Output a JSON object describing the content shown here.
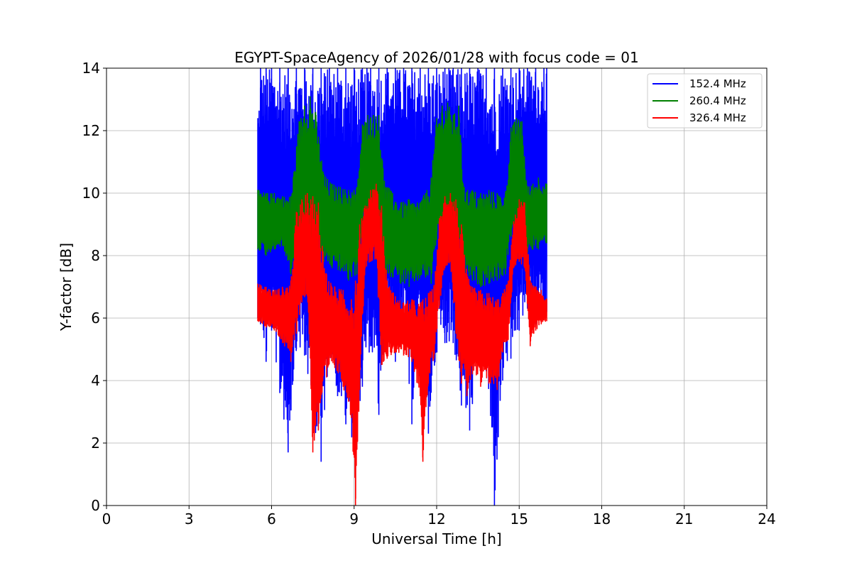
{
  "chart_data": {
    "type": "line",
    "title": "EGYPT-SpaceAgency of 2026/01/28 with focus code = 01",
    "xlabel": "Universal Time [h]",
    "ylabel": "Y-factor [dB]",
    "xlim": [
      0,
      24
    ],
    "ylim": [
      0,
      14
    ],
    "xticks": [
      0,
      3,
      6,
      9,
      12,
      15,
      18,
      21,
      24
    ],
    "xtick_labels": [
      "0",
      "3",
      "6",
      "9",
      "12",
      "15",
      "18",
      "21",
      "24"
    ],
    "yticks": [
      0,
      2,
      4,
      6,
      8,
      10,
      12,
      14
    ],
    "ytick_labels": [
      "0",
      "2",
      "4",
      "6",
      "8",
      "10",
      "12",
      "14"
    ],
    "grid": true,
    "legend_position": "top-right",
    "series": [
      {
        "name": "152.4 MHz",
        "color": "#0000ff",
        "x": [
          5.5,
          5.6,
          5.8,
          6.0,
          6.3,
          6.6,
          6.9,
          7.2,
          7.5,
          7.8,
          8.1,
          8.4,
          8.7,
          9.0,
          9.3,
          9.6,
          9.9,
          10.2,
          10.5,
          10.8,
          11.1,
          11.4,
          11.7,
          12.0,
          12.3,
          12.6,
          12.9,
          13.2,
          13.5,
          13.8,
          14.1,
          14.4,
          14.7,
          15.0,
          15.3,
          15.6,
          15.9,
          16.0
        ],
        "y_high": [
          12.4,
          14.0,
          14.0,
          14.0,
          14.0,
          14.0,
          14.0,
          14.0,
          14.0,
          14.0,
          14.0,
          14.0,
          14.0,
          14.0,
          14.0,
          14.0,
          14.0,
          14.0,
          14.0,
          14.0,
          14.0,
          14.0,
          14.0,
          14.0,
          14.0,
          14.0,
          14.0,
          14.0,
          14.0,
          14.0,
          14.0,
          14.0,
          14.0,
          14.0,
          14.0,
          14.0,
          14.0,
          14.0
        ],
        "y_low": [
          6.0,
          5.8,
          4.6,
          5.6,
          3.6,
          1.7,
          5.0,
          4.8,
          2.7,
          1.4,
          4.9,
          3.5,
          2.6,
          2.0,
          3.8,
          5.1,
          2.9,
          6.0,
          4.6,
          6.1,
          2.6,
          5.1,
          2.3,
          4.9,
          5.2,
          5.2,
          3.2,
          2.4,
          4.7,
          4.3,
          0.0,
          4.0,
          4.7,
          5.6,
          6.3,
          5.8,
          6.0,
          6.2
        ]
      },
      {
        "name": "260.4 MHz",
        "color": "#008000",
        "x": [
          5.5,
          5.8,
          6.1,
          6.4,
          6.7,
          7.0,
          7.2,
          7.4,
          7.6,
          7.9,
          8.2,
          8.5,
          8.8,
          9.1,
          9.3,
          9.5,
          9.7,
          9.9,
          10.1,
          10.4,
          10.7,
          11.0,
          11.3,
          11.6,
          11.8,
          12.0,
          12.2,
          12.4,
          12.6,
          12.8,
          13.0,
          13.3,
          13.6,
          13.9,
          14.2,
          14.5,
          14.7,
          14.9,
          15.1,
          15.3,
          15.5,
          15.7,
          16.0
        ],
        "y_high": [
          10.1,
          10.0,
          10.0,
          9.9,
          9.9,
          12.3,
          12.8,
          13.1,
          12.6,
          10.6,
          10.3,
          10.2,
          10.1,
          10.2,
          12.2,
          12.5,
          12.5,
          12.5,
          10.4,
          10.0,
          9.7,
          9.8,
          9.7,
          10.0,
          10.5,
          12.4,
          12.8,
          12.9,
          12.5,
          12.8,
          10.2,
          10.1,
          10.0,
          10.1,
          10.0,
          10.0,
          12.1,
          12.4,
          12.3,
          10.2,
          10.3,
          10.5,
          10.3
        ],
        "y_low": [
          8.2,
          8.0,
          8.2,
          8.3,
          7.4,
          8.2,
          8.3,
          8.5,
          8.3,
          7.8,
          7.6,
          7.5,
          7.2,
          7.4,
          8.8,
          9.0,
          9.1,
          8.4,
          7.4,
          7.3,
          7.1,
          7.0,
          7.2,
          7.3,
          7.1,
          8.5,
          8.6,
          8.7,
          8.3,
          8.0,
          7.4,
          7.2,
          7.0,
          7.1,
          7.2,
          7.4,
          8.6,
          8.8,
          8.6,
          8.1,
          8.2,
          8.2,
          8.4
        ]
      },
      {
        "name": "326.4 MHz",
        "color": "#ff0000",
        "x": [
          5.5,
          5.8,
          6.1,
          6.4,
          6.7,
          6.9,
          7.1,
          7.3,
          7.5,
          7.7,
          8.0,
          8.3,
          8.6,
          8.9,
          9.05,
          9.2,
          9.4,
          9.6,
          9.8,
          10.0,
          10.2,
          10.5,
          10.8,
          11.1,
          11.4,
          11.5,
          11.7,
          11.9,
          12.1,
          12.3,
          12.5,
          12.7,
          12.9,
          13.1,
          13.3,
          13.6,
          13.9,
          14.2,
          14.4,
          14.6,
          14.8,
          15.0,
          15.2,
          15.4,
          15.6,
          15.8,
          16.0
        ],
        "y_high": [
          7.1,
          7.0,
          6.9,
          7.0,
          7.2,
          9.4,
          9.8,
          10.0,
          9.9,
          9.7,
          7.4,
          7.0,
          6.9,
          6.6,
          7.2,
          9.0,
          9.6,
          10.1,
          10.3,
          9.6,
          7.2,
          6.7,
          6.5,
          6.6,
          6.5,
          6.6,
          6.8,
          7.0,
          9.2,
          9.9,
          10.0,
          9.8,
          9.0,
          7.4,
          7.0,
          6.9,
          6.8,
          6.6,
          6.8,
          7.2,
          9.1,
          9.8,
          9.7,
          7.2,
          7.0,
          6.9,
          6.6
        ],
        "y_low": [
          5.9,
          5.7,
          5.6,
          5.2,
          4.6,
          5.5,
          6.5,
          6.7,
          1.7,
          2.4,
          4.1,
          4.4,
          3.8,
          2.8,
          0.0,
          3.7,
          7.6,
          7.8,
          7.9,
          4.5,
          4.7,
          4.9,
          4.8,
          4.6,
          3.5,
          1.4,
          3.9,
          4.7,
          6.4,
          7.6,
          7.8,
          5.5,
          3.9,
          3.5,
          4.2,
          3.8,
          3.9,
          3.7,
          4.9,
          5.3,
          7.6,
          7.8,
          7.6,
          5.1,
          5.6,
          5.8,
          5.9
        ]
      }
    ]
  }
}
